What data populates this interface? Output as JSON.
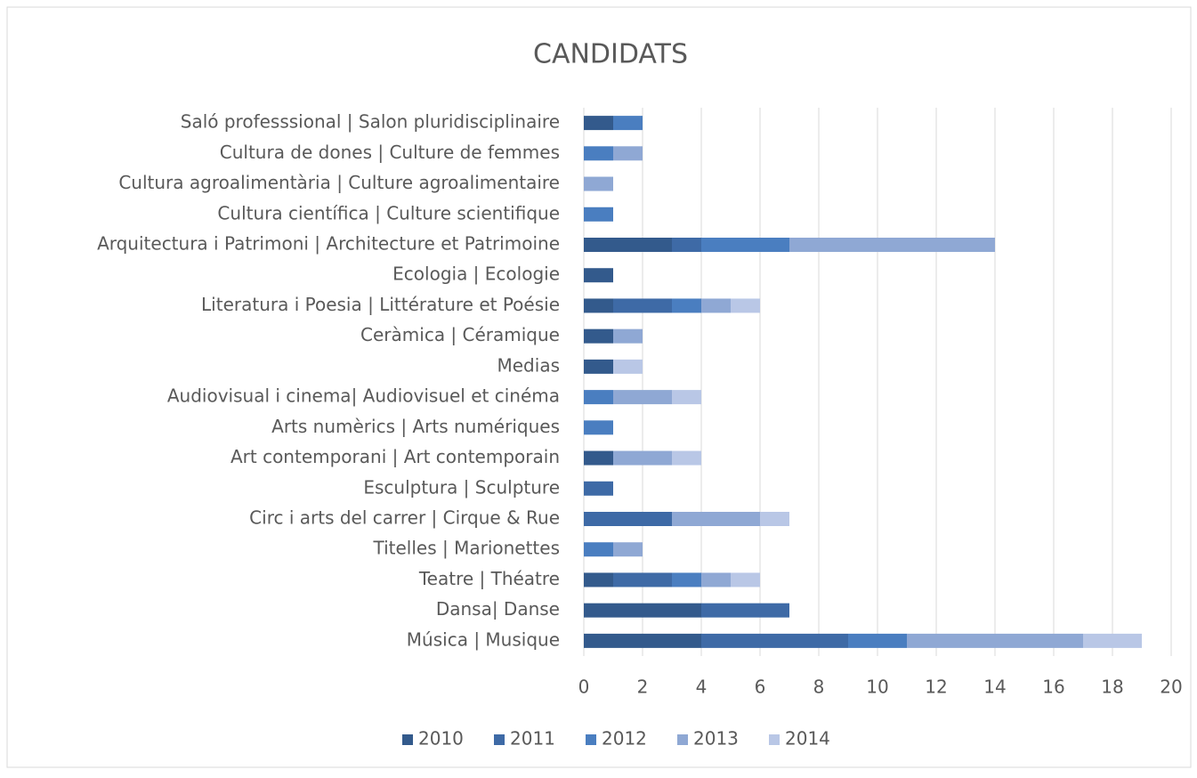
{
  "chart_data": {
    "type": "stacked-bar-horizontal",
    "title": "CANDIDATS",
    "categories": [
      "Saló professsional | Salon pluridisciplinaire",
      "Cultura  de dones | Culture de femmes",
      "Cultura agroalimentària  | Culture agroalimentaire",
      "Cultura científica | Culture scientifique",
      "Arquitectura i Patrimoni | Architecture et Patrimoine",
      "Ecologia | Ecologie",
      "Literatura i Poesia | Littérature et Poésie",
      "Ceràmica | Céramique",
      "Medias",
      "Audiovisual i cinema| Audiovisuel et cinéma",
      "Arts numèrics | Arts numériques",
      "Art contemporani | Art contemporain",
      "Esculptura | Sculpture",
      "Circ i arts del carrer | Cirque & Rue",
      "Titelles | Marionettes",
      "Teatre | Théatre",
      "Dansa| Danse",
      "Música | Musique"
    ],
    "series": [
      {
        "name": "2010",
        "color": "#335a8c",
        "values": [
          1,
          0,
          0,
          0,
          3,
          1,
          1,
          1,
          1,
          0,
          0,
          1,
          0,
          0,
          0,
          1,
          4,
          4
        ]
      },
      {
        "name": "2011",
        "color": "#3e6aa6",
        "values": [
          0,
          0,
          0,
          0,
          1,
          0,
          2,
          0,
          0,
          0,
          0,
          0,
          1,
          3,
          0,
          2,
          3,
          5
        ]
      },
      {
        "name": "2012",
        "color": "#4a7ec0",
        "values": [
          1,
          1,
          0,
          1,
          3,
          0,
          1,
          0,
          0,
          1,
          1,
          0,
          0,
          0,
          1,
          1,
          0,
          2
        ]
      },
      {
        "name": "2013",
        "color": "#8fa8d4",
        "values": [
          0,
          1,
          1,
          0,
          7,
          0,
          1,
          1,
          0,
          2,
          0,
          2,
          0,
          3,
          1,
          1,
          0,
          6
        ]
      },
      {
        "name": "2014",
        "color": "#b9c7e6",
        "values": [
          0,
          0,
          0,
          0,
          0,
          0,
          1,
          0,
          1,
          1,
          0,
          1,
          0,
          1,
          0,
          1,
          0,
          2
        ]
      }
    ],
    "xlim": [
      0,
      20
    ],
    "xticks": [
      0,
      2,
      4,
      6,
      8,
      10,
      12,
      14,
      16,
      18,
      20
    ],
    "grid": true,
    "legend": "bottom"
  }
}
